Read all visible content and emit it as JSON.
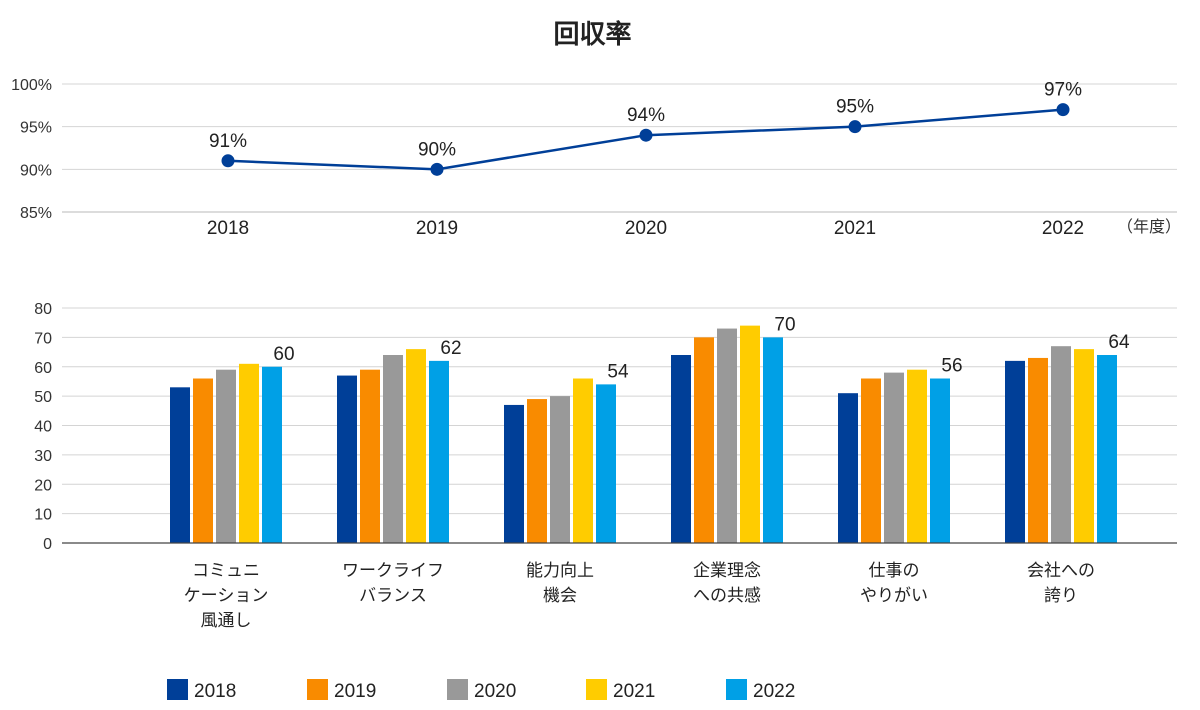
{
  "title": "回収率",
  "colors": [
    "#003f98",
    "#f98b00",
    "#999999",
    "#ffcc00",
    "#00a0e6"
  ],
  "chart_data": [
    {
      "type": "line",
      "title": "回収率",
      "x": [
        "2018",
        "2019",
        "2020",
        "2021",
        "2022"
      ],
      "x_unit": "（年度）",
      "series": [
        {
          "values": [
            91,
            90,
            94,
            95,
            97
          ],
          "color": "#003f98"
        }
      ],
      "data_labels": [
        "91%",
        "90%",
        "94%",
        "95%",
        "97%"
      ],
      "y_ticks": [
        "100%",
        "95%",
        "90%",
        "85%"
      ],
      "ylim": [
        85,
        100
      ],
      "grid": true
    },
    {
      "type": "bar",
      "categories": [
        [
          "コミュニ",
          "ケーション",
          "風通し"
        ],
        [
          "ワークライフ",
          "バランス"
        ],
        [
          "能力向上",
          "機会"
        ],
        [
          "企業理念",
          "への共感"
        ],
        [
          "仕事の",
          "やりがい"
        ],
        [
          "会社への",
          "誇り"
        ]
      ],
      "series": [
        {
          "name": "2018",
          "color": "#003f98",
          "values": [
            53,
            57,
            47,
            64,
            51,
            62
          ]
        },
        {
          "name": "2019",
          "color": "#f98b00",
          "values": [
            56,
            59,
            49,
            70,
            56,
            63
          ]
        },
        {
          "name": "2020",
          "color": "#999999",
          "values": [
            59,
            64,
            50,
            73,
            58,
            67
          ]
        },
        {
          "name": "2021",
          "color": "#ffcc00",
          "values": [
            61,
            66,
            56,
            74,
            59,
            66
          ]
        },
        {
          "name": "2022",
          "color": "#00a0e6",
          "values": [
            60,
            62,
            54,
            70,
            56,
            64
          ]
        }
      ],
      "data_labels": [
        "60",
        "62",
        "54",
        "70",
        "56",
        "64"
      ],
      "y_ticks": [
        "80",
        "70",
        "60",
        "50",
        "40",
        "30",
        "20",
        "10",
        "0"
      ],
      "ylim": [
        0,
        80
      ],
      "grid": true,
      "legend": "bottom"
    }
  ]
}
